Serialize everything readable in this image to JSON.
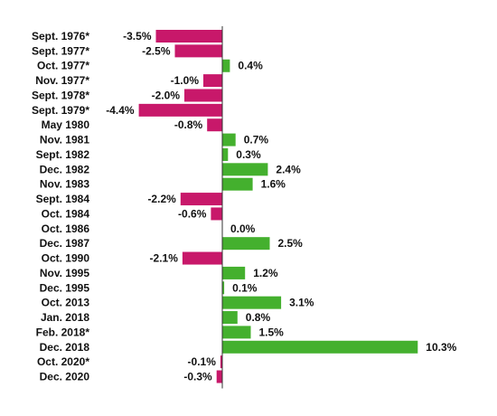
{
  "chart_data": {
    "type": "bar",
    "orientation": "horizontal",
    "categories": [
      "Sept. 1976*",
      "Sept. 1977*",
      "Oct. 1977*",
      "Nov. 1977*",
      "Sept. 1978*",
      "Sept. 1979*",
      "May 1980",
      "Nov. 1981",
      "Sept. 1982",
      "Dec. 1982",
      "Nov. 1983",
      "Sept. 1984",
      "Oct. 1984",
      "Oct. 1986",
      "Dec. 1987",
      "Oct. 1990",
      "Nov. 1995",
      "Dec. 1995",
      "Oct. 2013",
      "Jan. 2018",
      "Feb. 2018*",
      "Dec. 2018",
      "Oct. 2020*",
      "Dec. 2020"
    ],
    "values": [
      -3.5,
      -2.5,
      0.4,
      -1.0,
      -2.0,
      -4.4,
      -0.8,
      0.7,
      0.3,
      2.4,
      1.6,
      -2.2,
      -0.6,
      0.0,
      2.5,
      -2.1,
      1.2,
      0.1,
      3.1,
      0.8,
      1.5,
      10.3,
      -0.1,
      -0.3
    ],
    "data_labels": [
      "-3.5%",
      "-2.5%",
      "0.4%",
      "-1.0%",
      "-2.0%",
      "-4.4%",
      "-0.8%",
      "0.7%",
      "0.3%",
      "2.4%",
      "1.6%",
      "-2.2%",
      "-0.6%",
      "0.0%",
      "2.5%",
      "-2.1%",
      "1.2%",
      "0.1%",
      "3.1%",
      "0.8%",
      "1.5%",
      "10.3%",
      "-0.1%",
      "-0.3%"
    ],
    "title": "",
    "xlabel": "",
    "ylabel": "",
    "xlim": [
      -4.4,
      10.3
    ],
    "grid": false,
    "legend": "none",
    "colors": {
      "positive": "#44b02e",
      "negative": "#c8186a",
      "axis": "#333333"
    }
  }
}
